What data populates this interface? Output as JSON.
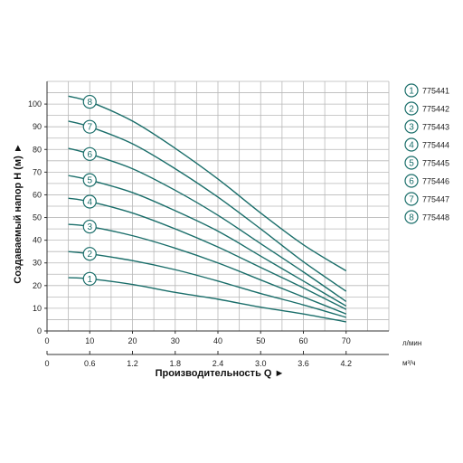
{
  "chart_data": {
    "type": "line",
    "x": [
      5,
      10,
      20,
      30,
      40,
      50,
      60,
      70
    ],
    "xlim": [
      0,
      70
    ],
    "ylim": [
      0,
      110
    ],
    "x_ticks": [
      0,
      10,
      20,
      30,
      40,
      50,
      60,
      70
    ],
    "y_ticks": [
      0,
      10,
      20,
      30,
      40,
      50,
      60,
      70,
      80,
      90,
      100
    ],
    "x_unit": "л/мин",
    "secondary_x_ticks": [
      "0",
      "0.6",
      "1.2",
      "1.8",
      "2.4",
      "3.0",
      "3.6",
      "4.2"
    ],
    "secondary_x_unit": "м³/ч",
    "xlabel": "Производительность Q",
    "ylabel": "Создаваемый напор H (м)",
    "line_color": "#1a6e6a",
    "grid": true,
    "legend_position": "right",
    "series": [
      {
        "name": "775441",
        "marker": "1",
        "values": [
          23.5,
          23,
          20.5,
          17,
          14,
          10.5,
          7.5,
          4
        ]
      },
      {
        "name": "775442",
        "marker": "2",
        "values": [
          35,
          34,
          31,
          27,
          22,
          16.5,
          11.5,
          6
        ]
      },
      {
        "name": "775443",
        "marker": "3",
        "values": [
          47,
          46,
          42,
          36.5,
          30,
          22.5,
          15,
          7.5
        ]
      },
      {
        "name": "775444",
        "marker": "4",
        "values": [
          58.5,
          57,
          52,
          45,
          37,
          28,
          19,
          9.5
        ]
      },
      {
        "name": "775445",
        "marker": "5",
        "values": [
          68.5,
          66.5,
          61,
          53,
          44,
          33,
          22,
          11
        ]
      },
      {
        "name": "775446",
        "marker": "6",
        "values": [
          80.5,
          78,
          71.5,
          62,
          51,
          38.5,
          26,
          13
        ]
      },
      {
        "name": "775447",
        "marker": "7",
        "values": [
          92.5,
          90,
          82.5,
          71.5,
          59,
          45,
          30.5,
          17.5
        ]
      },
      {
        "name": "775448",
        "marker": "8",
        "values": [
          103.5,
          101,
          92.5,
          80.5,
          67,
          52,
          38,
          26.5
        ]
      }
    ]
  }
}
